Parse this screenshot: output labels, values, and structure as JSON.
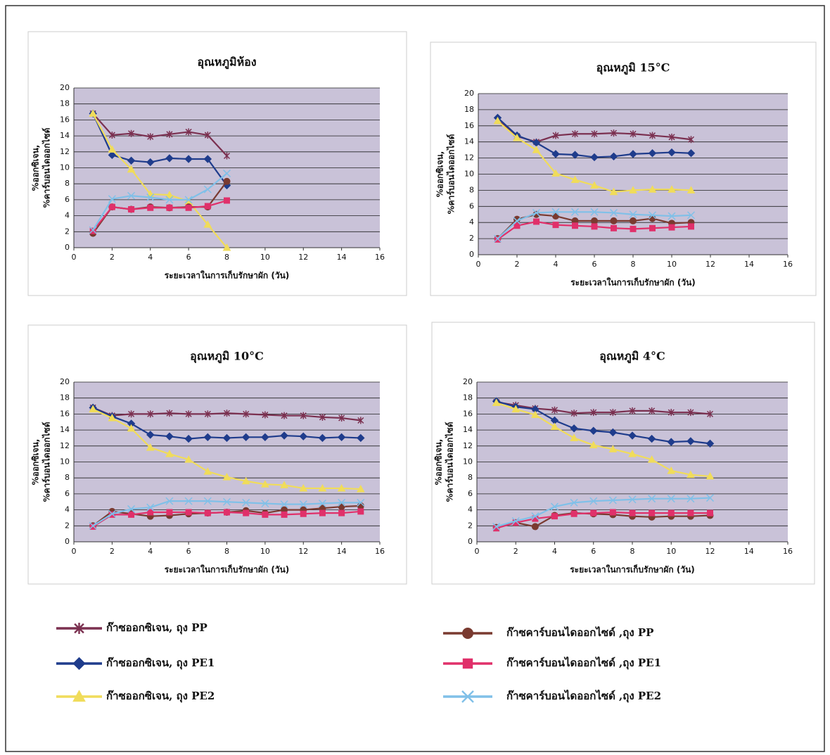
{
  "chart_data": [
    {
      "type": "line",
      "title": "อุณหภูมิห้อง",
      "xlabel": "ระยะเวลาในการเก็บรักษาผัก (วัน)",
      "ylabel": [
        "%ออกซิเจน,",
        "%คาร์บอนไดออกไซด์"
      ],
      "x": [
        1,
        2,
        3,
        4,
        5,
        6,
        7,
        8
      ],
      "xlim": [
        0,
        16
      ],
      "xticks": [
        0,
        2,
        4,
        6,
        8,
        10,
        12,
        14,
        16
      ],
      "ylim": [
        0,
        20
      ],
      "yticks": [
        0,
        2,
        4,
        6,
        8,
        10,
        12,
        14,
        16,
        18,
        20
      ],
      "grid": true,
      "series": [
        {
          "values": [
            16.8,
            14.1,
            14.3,
            13.9,
            14.2,
            14.5,
            14.1,
            11.5
          ]
        },
        {
          "values": [
            16.8,
            11.6,
            10.9,
            10.7,
            11.2,
            11.1,
            11.1,
            7.8
          ]
        },
        {
          "values": [
            16.8,
            12.3,
            9.8,
            6.7,
            6.6,
            5.8,
            2.9,
            0
          ]
        },
        {
          "values": [
            1.8,
            5.1,
            4.8,
            5.1,
            5,
            5.1,
            5.1,
            8.3
          ]
        },
        {
          "values": [
            2.1,
            5.1,
            4.8,
            5,
            5,
            5,
            5.2,
            5.9
          ]
        },
        {
          "values": [
            2.2,
            6.1,
            6.5,
            6.3,
            6,
            6,
            7.3,
            9.3
          ]
        }
      ]
    },
    {
      "type": "line",
      "title": "อุณหภูมิ 15°C",
      "xlabel": "ระยะเวลาในการเก็บรักษาผัก (วัน)",
      "ylabel": [
        "%ออกซิเจน,",
        "%คาร์บอนไดออกไซด์"
      ],
      "x": [
        1,
        2,
        3,
        4,
        5,
        6,
        7,
        8,
        9,
        10,
        11
      ],
      "xlim": [
        0,
        16
      ],
      "xticks": [
        0,
        2,
        4,
        6,
        8,
        10,
        12,
        14,
        16
      ],
      "ylim": [
        0,
        20
      ],
      "yticks": [
        0,
        2,
        4,
        6,
        8,
        10,
        12,
        14,
        16,
        18,
        20
      ],
      "grid": true,
      "series": [
        {
          "values": [
            16.7,
            14.7,
            14,
            14.8,
            15,
            15,
            15.1,
            15,
            14.8,
            14.6,
            14.3
          ]
        },
        {
          "values": [
            17,
            14.8,
            13.9,
            12.5,
            12.4,
            12.1,
            12.2,
            12.5,
            12.6,
            12.7,
            12.6
          ]
        },
        {
          "values": [
            16.6,
            14.5,
            13,
            10.1,
            9.3,
            8.6,
            7.8,
            8,
            8.1,
            8.1,
            8
          ]
        },
        {
          "values": [
            2,
            4.4,
            5,
            4.8,
            4.2,
            4.2,
            4.2,
            4.2,
            4.5,
            3.9,
            4
          ]
        },
        {
          "values": [
            1.9,
            3.6,
            4.1,
            3.7,
            3.6,
            3.5,
            3.3,
            3.2,
            3.3,
            3.4,
            3.5
          ]
        },
        {
          "values": [
            2,
            4.2,
            5.2,
            5.3,
            5.3,
            5.3,
            5.2,
            5,
            4.9,
            4.8,
            4.9
          ]
        }
      ]
    },
    {
      "type": "line",
      "title": "อุณหภูมิ 10°C",
      "xlabel": "ระยะเวลาในการเก็บรักษาผัก (วัน)",
      "ylabel": [
        "%ออกซิเจน,",
        "%คาร์บอนไดออกไซด์"
      ],
      "x": [
        1,
        2,
        3,
        4,
        5,
        6,
        7,
        8,
        9,
        10,
        11,
        12,
        13,
        14,
        15
      ],
      "xlim": [
        0,
        16
      ],
      "xticks": [
        0,
        2,
        4,
        6,
        8,
        10,
        12,
        14,
        16
      ],
      "ylim": [
        0,
        20
      ],
      "yticks": [
        0,
        2,
        4,
        6,
        8,
        10,
        12,
        14,
        16,
        18,
        20
      ],
      "grid": true,
      "series": [
        {
          "values": [
            16.8,
            15.8,
            16,
            16,
            16.1,
            16,
            16,
            16.1,
            16,
            15.9,
            15.8,
            15.8,
            15.6,
            15.5,
            15.2
          ]
        },
        {
          "values": [
            16.8,
            15.7,
            14.8,
            13.4,
            13.2,
            12.9,
            13.1,
            13,
            13.1,
            13.1,
            13.3,
            13.2,
            13,
            13.1,
            13
          ]
        },
        {
          "values": [
            16.6,
            15.5,
            14.2,
            11.8,
            11,
            10.3,
            8.8,
            8.1,
            7.6,
            7.2,
            7.1,
            6.7,
            6.7,
            6.7,
            6.6
          ]
        },
        {
          "values": [
            2,
            3.8,
            3.5,
            3.2,
            3.3,
            3.5,
            3.6,
            3.7,
            3.9,
            3.6,
            4,
            4,
            4.2,
            4.4,
            4.5
          ]
        },
        {
          "values": [
            1.9,
            3.4,
            3.4,
            3.7,
            3.7,
            3.7,
            3.6,
            3.7,
            3.6,
            3.4,
            3.4,
            3.5,
            3.6,
            3.6,
            3.8
          ]
        },
        {
          "values": [
            2,
            3.5,
            4.1,
            4.3,
            5.1,
            5.1,
            5.1,
            5,
            4.9,
            4.8,
            4.7,
            4.7,
            4.8,
            4.9,
            4.9
          ]
        }
      ]
    },
    {
      "type": "line",
      "title": "อุณหภูมิ 4°C",
      "xlabel": "ระยะเวลาในการเก็บรักษาผัก (วัน)",
      "ylabel": [
        "%ออกซิเจน,",
        "%คาร์บอนไดออกไซด์"
      ],
      "x": [
        1,
        2,
        3,
        4,
        5,
        6,
        7,
        8,
        9,
        10,
        11,
        12
      ],
      "xlim": [
        0,
        16
      ],
      "xticks": [
        0,
        2,
        4,
        6,
        8,
        10,
        12,
        14,
        16
      ],
      "ylim": [
        0,
        20
      ],
      "yticks": [
        0,
        2,
        4,
        6,
        8,
        10,
        12,
        14,
        16,
        18,
        20
      ],
      "grid": true,
      "series": [
        {
          "values": [
            17.5,
            17.1,
            16.7,
            16.5,
            16.1,
            16.2,
            16.2,
            16.4,
            16.4,
            16.2,
            16.2,
            16
          ]
        },
        {
          "values": [
            17.6,
            16.9,
            16.6,
            15.2,
            14.2,
            13.9,
            13.7,
            13.3,
            12.9,
            12.5,
            12.6,
            12.3
          ]
        },
        {
          "values": [
            17.4,
            16.6,
            15.9,
            14.4,
            13,
            12.1,
            11.6,
            11,
            10.3,
            8.9,
            8.4,
            8.2
          ]
        },
        {
          "values": [
            1.8,
            2.4,
            1.9,
            3.3,
            3.6,
            3.5,
            3.4,
            3.2,
            3.1,
            3.2,
            3.2,
            3.3
          ]
        },
        {
          "values": [
            1.7,
            2.4,
            2.9,
            3.2,
            3.5,
            3.6,
            3.7,
            3.6,
            3.6,
            3.6,
            3.6,
            3.6
          ]
        },
        {
          "values": [
            1.9,
            2.6,
            3.2,
            4.4,
            4.9,
            5.1,
            5.2,
            5.3,
            5.4,
            5.4,
            5.4,
            5.5
          ]
        }
      ]
    }
  ],
  "legend": [
    {
      "name": "ก๊าซออกซิเจน, ถุง PP",
      "color": "#7b3050",
      "marker": "star"
    },
    {
      "name": "ก๊าซออกซิเจน, ถุง PE1",
      "color": "#1f3c8c",
      "marker": "diamond"
    },
    {
      "name": "ก๊าซออกซิเจน, ถุง PE2",
      "color": "#f0dc5a",
      "marker": "triangle"
    },
    {
      "name": "ก๊าซคาร์บอนไดออกไซด์ ,ถุง PP",
      "color": "#7a3a30",
      "marker": "circle"
    },
    {
      "name": "ก๊าซคาร์บอนไดออกไซด์ ,ถุง PE1",
      "color": "#e0306a",
      "marker": "square"
    },
    {
      "name": "ก๊าซคาร์บอนไดออกไซด์ ,ถุง PE2",
      "color": "#80c0e8",
      "marker": "cross"
    }
  ]
}
